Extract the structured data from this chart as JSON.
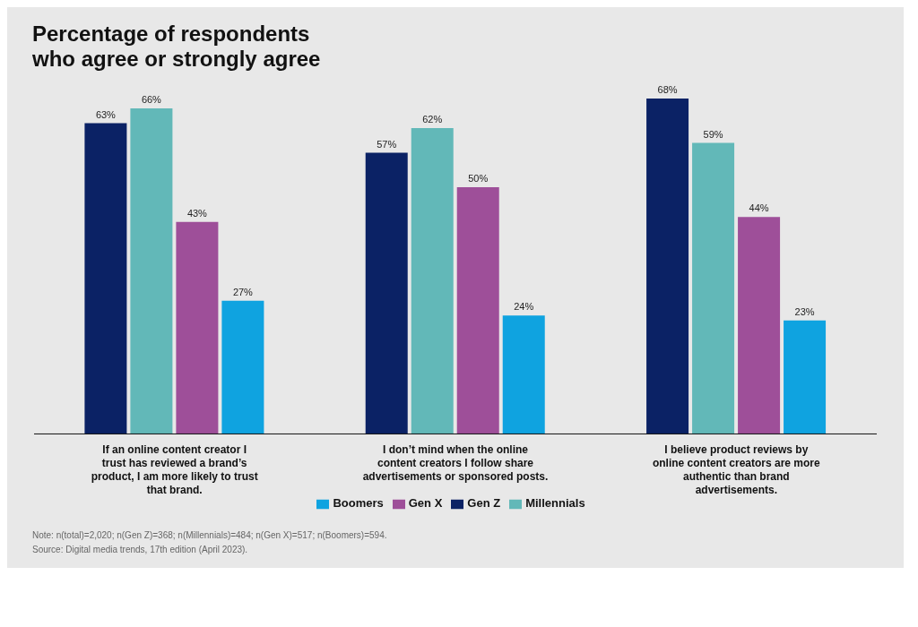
{
  "chart_data": {
    "type": "bar",
    "title": "Percentage of respondents who agree or strongly agree",
    "categories": [
      "If an online content creator I trust has reviewed a brand’s product, I am more likely to trust that brand.",
      "I don’t mind when the online content creators I follow share advertisements or sponsored posts.",
      "I believe product reviews by online content creators are more authentic than brand advertisements."
    ],
    "series": [
      {
        "name": "Gen Z",
        "color": "#0b2265",
        "values": [
          63,
          57,
          68
        ],
        "value_labels": [
          "63%",
          "57%",
          "68%"
        ]
      },
      {
        "name": "Millennials",
        "color": "#62b8b8",
        "values": [
          66,
          62,
          59
        ],
        "value_labels": [
          "66%",
          "62%",
          "59%"
        ]
      },
      {
        "name": "Gen X",
        "color": "#9e4f99",
        "values": [
          43,
          50,
          44
        ],
        "value_labels": [
          "43%",
          "50%",
          "44%"
        ]
      },
      {
        "name": "Boomers",
        "color": "#0fa3e0",
        "values": [
          27,
          24,
          23
        ],
        "value_labels": [
          "27%",
          "24%",
          "23%"
        ]
      }
    ],
    "legend": "bottom",
    "annotations": [
      "Note: n(total)=2,020; n(Gen Z)=368; n(Millennials)=484; n(Gen X)=517; n(Boomers)=594.",
      "Source: Digital media trends, 17th edition (April 2023)."
    ]
  }
}
